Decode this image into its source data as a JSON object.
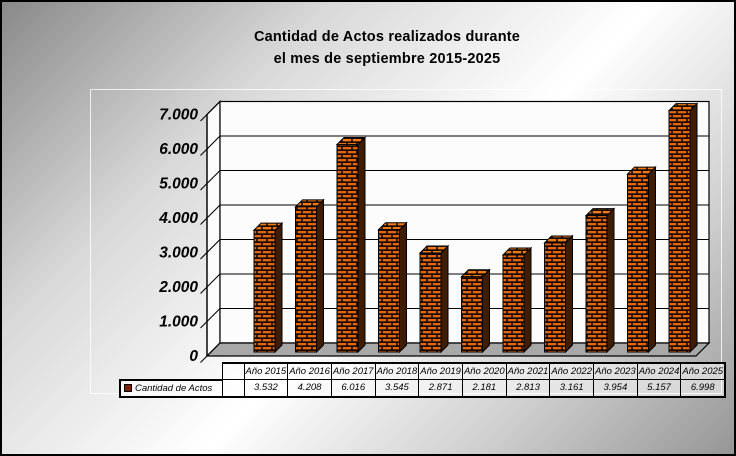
{
  "chart_data": {
    "type": "bar",
    "style": "3d-column-brick-texture",
    "title": "Cantidad de Actos realizados durante el mes de septiembre 2015-2025",
    "title_lines": [
      "Cantidad de Actos realizados durante",
      "el mes de septiembre 2015-2025"
    ],
    "series_name": "Cantidad de Actos",
    "categories": [
      "Año 2015",
      "Año 2016",
      "Año 2017",
      "Año 2018",
      "Año 2019",
      "Año 2020",
      "Año 2021",
      "Año 2022",
      "Año 2023",
      "Año 2024",
      "Año 2025"
    ],
    "values": [
      3532,
      4208,
      6016,
      3545,
      2871,
      2181,
      2813,
      3161,
      3954,
      5157,
      6998
    ],
    "value_labels": [
      "3.532",
      "4.208",
      "6.016",
      "3.545",
      "2.871",
      "2.181",
      "2.813",
      "3.161",
      "3.954",
      "5.157",
      "6.998"
    ],
    "ylim": [
      0,
      7000
    ],
    "ytick_step": 1000,
    "ytick_labels": [
      "0",
      "1.000",
      "2.000",
      "3.000",
      "4.000",
      "5.000",
      "6.000",
      "7.000"
    ],
    "grid": true,
    "legend_position": "data-table-left",
    "data_table_shown": true,
    "colors": {
      "brick": "#E2650E",
      "brick_top": "#EF7914",
      "brick_side": "#3E1D04",
      "mortar": "#000000",
      "floor": "#A8A8A8",
      "wall": "#FCFCFC",
      "outline": "#000000",
      "legend_marker": "#7A1F00",
      "text": "#000000"
    }
  }
}
